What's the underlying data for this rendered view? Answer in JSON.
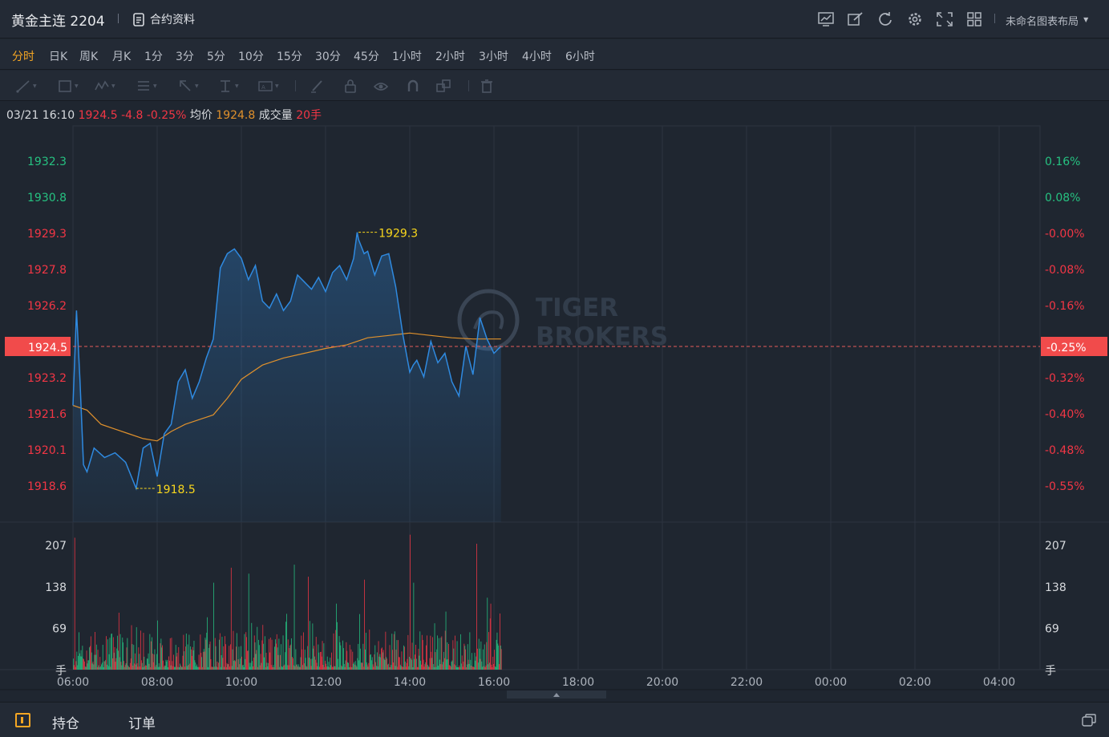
{
  "header": {
    "title": "黄金主连 2204",
    "contract_label": "合约资料",
    "layout_label": "未命名图表布局",
    "icons": [
      "chart-icon",
      "edit-icon",
      "refresh-icon",
      "gear-icon",
      "fullscreen-icon",
      "grid-layout-icon"
    ]
  },
  "periods": [
    "分时",
    "日K",
    "周K",
    "月K",
    "1分",
    "3分",
    "5分",
    "10分",
    "15分",
    "30分",
    "45分",
    "1小时",
    "2小时",
    "3小时",
    "4小时",
    "6小时"
  ],
  "active_period": "分时",
  "drawing_tools": [
    "line-tool-icon",
    "rectangle-tool-icon",
    "pattern-tool-icon",
    "fibonacci-tool-icon",
    "arrow-tool-icon",
    "measure-tool-icon",
    "text-tool-icon",
    "brush-icon",
    "lock-icon",
    "eye-icon",
    "magnet-icon",
    "copy-icon",
    "trash-icon"
  ],
  "info": {
    "datetime": "03/21 16:10",
    "price": "1924.5",
    "change": "-4.8",
    "change_pct": "-0.25%",
    "avg_label": "均价",
    "avg_value": "1924.8",
    "volume_label": "成交量",
    "volume_value": "20手"
  },
  "watermark": {
    "line1": "TIGER",
    "line2": "BROKERS"
  },
  "footer": {
    "positions_label": "持仓",
    "orders_label": "订单"
  },
  "colors": {
    "up": "#f23645",
    "down": "#26c281",
    "price_line": "#2f8ae0",
    "avg_line": "#e0912c",
    "accent": "#f5a623",
    "highlight": "#f9d71c"
  },
  "chart_data": {
    "type": "line",
    "price_axis": {
      "ticks": [
        "1932.3",
        "1930.8",
        "1929.3",
        "1927.8",
        "1926.2",
        "1924.5",
        "1923.2",
        "1921.6",
        "1920.1",
        "1918.6"
      ],
      "ylim": [
        1918.6,
        1932.3
      ]
    },
    "pct_axis": {
      "ticks": [
        "0.16%",
        "0.08%",
        "-0.00%",
        "-0.08%",
        "-0.16%",
        "-0.25%",
        "-0.32%",
        "-0.40%",
        "-0.48%",
        "-0.55%"
      ]
    },
    "volume_axis": {
      "ticks": [
        "207",
        "138",
        "69",
        "手"
      ]
    },
    "x_ticks": [
      "06:00",
      "08:00",
      "10:00",
      "12:00",
      "14:00",
      "16:00",
      "18:00",
      "20:00",
      "22:00",
      "00:00",
      "02:00",
      "04:00"
    ],
    "current_price": {
      "value": 1924.5,
      "label": "1924.5",
      "pct_label": "-0.25%"
    },
    "high": {
      "value": 1929.3,
      "label": "1929.3",
      "time": "12:47"
    },
    "low": {
      "value": 1918.5,
      "label": "1918.5",
      "time": "07:30"
    },
    "price_series": {
      "x": [
        "06:00",
        "06:05",
        "06:10",
        "06:15",
        "06:20",
        "06:30",
        "06:45",
        "07:00",
        "07:15",
        "07:30",
        "07:40",
        "07:50",
        "08:00",
        "08:10",
        "08:20",
        "08:30",
        "08:40",
        "08:50",
        "09:00",
        "09:10",
        "09:20",
        "09:30",
        "09:40",
        "09:50",
        "10:00",
        "10:10",
        "10:20",
        "10:30",
        "10:40",
        "10:50",
        "11:00",
        "11:10",
        "11:20",
        "11:30",
        "11:40",
        "11:50",
        "12:00",
        "12:10",
        "12:20",
        "12:30",
        "12:40",
        "12:45",
        "12:47",
        "12:55",
        "13:00",
        "13:10",
        "13:20",
        "13:30",
        "13:40",
        "13:50",
        "14:00",
        "14:05",
        "14:10",
        "14:20",
        "14:30",
        "14:40",
        "14:50",
        "15:00",
        "15:10",
        "15:20",
        "15:30",
        "15:40",
        "15:50",
        "16:00",
        "16:10"
      ],
      "values": [
        1922,
        1926,
        1923,
        1919.5,
        1919.2,
        1920.2,
        1919.8,
        1920.0,
        1919.6,
        1918.5,
        1920.2,
        1920.4,
        1919.0,
        1920.8,
        1921.2,
        1923.0,
        1923.5,
        1922.3,
        1923.0,
        1924.0,
        1924.8,
        1927.8,
        1928.4,
        1928.6,
        1928.2,
        1927.3,
        1927.9,
        1926.4,
        1926.1,
        1926.7,
        1926.0,
        1926.4,
        1927.5,
        1927.2,
        1926.9,
        1927.4,
        1926.8,
        1927.6,
        1927.9,
        1927.3,
        1928.2,
        1929.3,
        1929.0,
        1928.4,
        1928.5,
        1927.5,
        1928.3,
        1928.4,
        1927.0,
        1925.0,
        1923.4,
        1923.7,
        1923.9,
        1923.2,
        1924.7,
        1923.8,
        1924.2,
        1923.0,
        1922.4,
        1924.5,
        1923.3,
        1925.7,
        1924.8,
        1924.2,
        1924.5
      ]
    },
    "avg_series": {
      "x": [
        "06:00",
        "06:20",
        "06:40",
        "07:00",
        "07:20",
        "07:40",
        "08:00",
        "08:20",
        "08:40",
        "09:00",
        "09:20",
        "09:40",
        "10:00",
        "10:30",
        "11:00",
        "11:30",
        "12:00",
        "12:30",
        "13:00",
        "13:30",
        "14:00",
        "14:30",
        "15:00",
        "15:30",
        "16:00",
        "16:10"
      ],
      "values": [
        1922.0,
        1921.8,
        1921.2,
        1921.0,
        1920.8,
        1920.6,
        1920.5,
        1920.9,
        1921.2,
        1921.4,
        1921.6,
        1922.3,
        1923.1,
        1923.7,
        1924.0,
        1924.2,
        1924.4,
        1924.55,
        1924.85,
        1924.95,
        1925.05,
        1924.95,
        1924.85,
        1924.8,
        1924.8,
        1924.8
      ]
    },
    "volume_series": {
      "x_start": "06:00",
      "x_end": "16:10",
      "interval_min": 1,
      "peaks": [
        {
          "time": "06:02",
          "value": 220,
          "dir": "up"
        },
        {
          "time": "07:05",
          "value": 95,
          "dir": "up"
        },
        {
          "time": "08:00",
          "value": 82,
          "dir": "down"
        },
        {
          "time": "09:20",
          "value": 145,
          "dir": "down"
        },
        {
          "time": "09:45",
          "value": 170,
          "dir": "up"
        },
        {
          "time": "10:10",
          "value": 160,
          "dir": "down"
        },
        {
          "time": "11:15",
          "value": 175,
          "dir": "down"
        },
        {
          "time": "11:35",
          "value": 155,
          "dir": "up"
        },
        {
          "time": "12:15",
          "value": 110,
          "dir": "down"
        },
        {
          "time": "12:55",
          "value": 150,
          "dir": "up"
        },
        {
          "time": "14:00",
          "value": 225,
          "dir": "up"
        },
        {
          "time": "14:05",
          "value": 145,
          "dir": "down"
        },
        {
          "time": "15:35",
          "value": 210,
          "dir": "up"
        },
        {
          "time": "15:50",
          "value": 120,
          "dir": "down"
        },
        {
          "time": "15:55",
          "value": 110,
          "dir": "up"
        }
      ],
      "ylim": [
        0,
        230
      ]
    }
  }
}
